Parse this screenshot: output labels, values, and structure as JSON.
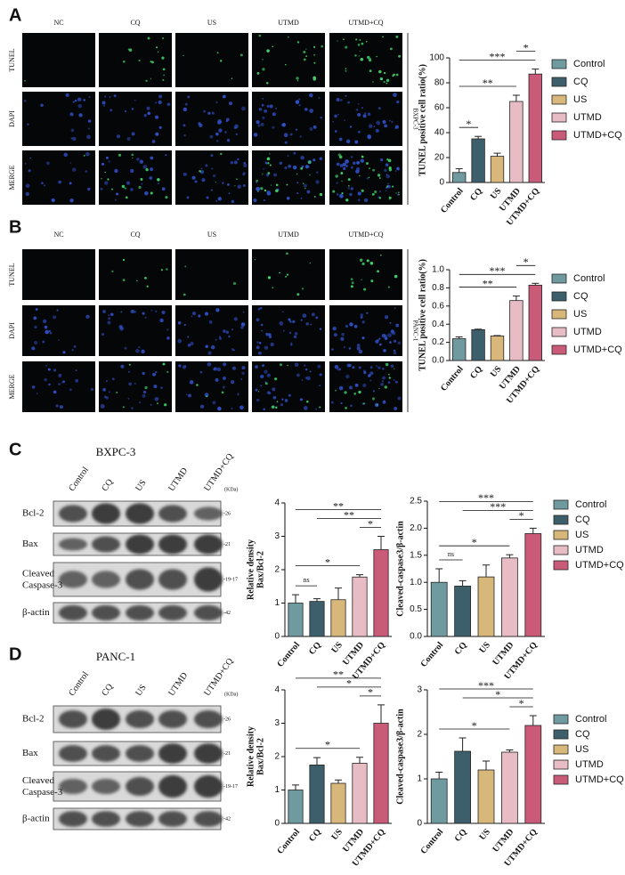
{
  "panel_a": {
    "letter": "A",
    "columns": [
      "NC",
      "CQ",
      "US",
      "UTMD",
      "UTMD+CQ"
    ],
    "rows": [
      "TUNEL",
      "DAPI",
      "MERGE"
    ],
    "cell_line": "BXPC-3"
  },
  "panel_b": {
    "letter": "B",
    "columns": [
      "NC",
      "CQ",
      "US",
      "UTMD",
      "UTMD+CQ"
    ],
    "rows": [
      "TUNEL",
      "DAPI",
      "MERGE"
    ],
    "cell_line": "PANC-1"
  },
  "panel_c": {
    "letter": "C",
    "cell_line": "BXPC-3",
    "lanes": [
      "Control",
      "CQ",
      "US",
      "UTMD",
      "UTMD+CQ"
    ],
    "unit": "(KDa)",
    "proteins": [
      "Bcl-2",
      "Bax",
      [
        "Cleaved",
        "Caspase-3"
      ],
      "β-actin"
    ],
    "sizes": [
      "-26",
      "-21",
      "-19-17",
      "-42"
    ]
  },
  "panel_d": {
    "letter": "D",
    "cell_line": "PANC-1",
    "lanes": [
      "Control",
      "CQ",
      "US",
      "UTMD",
      "UTMD+CQ"
    ],
    "unit": "(KDa)",
    "proteins": [
      "Bcl-2",
      "Bax",
      [
        "Cleaved",
        "Caspase-3"
      ],
      "β-actin"
    ],
    "sizes": [
      "-26",
      "-21",
      "-19-17",
      "-42"
    ]
  },
  "chart_data": [
    {
      "type": "bar",
      "ylabel": "TUNEL positive cell ratio(%)",
      "categories": [
        "Control",
        "CQ",
        "US",
        "UTMD",
        "UTMD+CQ"
      ],
      "values": [
        8,
        35,
        21,
        65,
        87
      ],
      "errors": [
        3,
        2,
        2.5,
        5,
        4
      ],
      "colors": [
        "#6f9aa0",
        "#3d5f6c",
        "#d8b87a",
        "#e8bcc4",
        "#c95a78"
      ],
      "ylim": [
        0,
        100
      ],
      "yticks": [
        0,
        20,
        40,
        60,
        80,
        100
      ],
      "legend": true,
      "significance": [
        {
          "from": 0,
          "to": 1,
          "label": "*"
        },
        {
          "from": 0,
          "to": 3,
          "label": "**"
        },
        {
          "from": 0,
          "to": 4,
          "label": "***"
        },
        {
          "from": 3,
          "to": 4,
          "label": "*"
        }
      ]
    },
    {
      "type": "bar",
      "ylabel": "TUNEL positive cell ratio(%)",
      "categories": [
        "Control",
        "CQ",
        "US",
        "UTMD",
        "UTMD+CQ"
      ],
      "values": [
        0.24,
        0.34,
        0.27,
        0.66,
        0.83
      ],
      "errors": [
        0.02,
        0.005,
        0.005,
        0.05,
        0.02
      ],
      "colors": [
        "#6f9aa0",
        "#3d5f6c",
        "#d8b87a",
        "#e8bcc4",
        "#c95a78"
      ],
      "ylim": [
        0,
        1
      ],
      "yticks": [
        {
          "value": 0,
          "label": "0.0"
        },
        0.2,
        0.4,
        0.6,
        0.8,
        {
          "value": 1,
          "label": "1.0"
        }
      ],
      "legend": true,
      "significance": [
        {
          "from": 0,
          "to": 3,
          "label": "**"
        },
        {
          "from": 0,
          "to": 4,
          "label": "***"
        },
        {
          "from": 3,
          "to": 4,
          "label": "*"
        }
      ]
    },
    {
      "type": "bar",
      "ylabel": [
        "Relative density",
        "Bax/Bcl-2"
      ],
      "categories": [
        "Control",
        "CQ",
        "US",
        "UTMD",
        "UTMD+CQ"
      ],
      "values": [
        1.0,
        1.05,
        1.1,
        1.78,
        2.6
      ],
      "errors": [
        0.25,
        0.08,
        0.35,
        0.07,
        0.4
      ],
      "colors": [
        "#6f9aa0",
        "#3d5f6c",
        "#d8b87a",
        "#e8bcc4",
        "#c95a78"
      ],
      "ylim": [
        0,
        4
      ],
      "yticks": [
        0,
        1,
        2,
        3,
        4
      ],
      "legend": false,
      "significance": [
        {
          "from": 0,
          "to": 1,
          "label": "ns"
        },
        {
          "from": 0,
          "to": 3,
          "label": "*"
        },
        {
          "from": 3,
          "to": 4,
          "label": "*"
        },
        {
          "from": 1,
          "to": 4,
          "label": "**"
        },
        {
          "from": 0,
          "to": 4,
          "label": "**"
        }
      ]
    },
    {
      "type": "bar",
      "ylabel": "Cleaved-caspase3/β-actin",
      "categories": [
        "Control",
        "CQ",
        "US",
        "UTMD",
        "UTMD+CQ"
      ],
      "values": [
        1.0,
        0.93,
        1.1,
        1.45,
        1.9
      ],
      "errors": [
        0.25,
        0.1,
        0.22,
        0.06,
        0.1
      ],
      "colors": [
        "#6f9aa0",
        "#3d5f6c",
        "#d8b87a",
        "#e8bcc4",
        "#c95a78"
      ],
      "ylim": [
        0,
        2.5
      ],
      "yticks": [
        {
          "value": 0,
          "label": "0.0"
        },
        0.5,
        {
          "value": 1,
          "label": "1.0"
        },
        1.5,
        {
          "value": 2,
          "label": "2.0"
        },
        2.5
      ],
      "legend": true,
      "significance": [
        {
          "from": 0,
          "to": 1,
          "label": "ns"
        },
        {
          "from": 0,
          "to": 3,
          "label": "*"
        },
        {
          "from": 3,
          "to": 4,
          "label": "*"
        },
        {
          "from": 1,
          "to": 4,
          "label": "***"
        },
        {
          "from": 0,
          "to": 4,
          "label": "***"
        }
      ]
    },
    {
      "type": "bar",
      "ylabel": [
        "Relative density",
        "Bax/Bcl-2"
      ],
      "categories": [
        "Control",
        "CQ",
        "US",
        "UTMD",
        "UTMD+CQ"
      ],
      "values": [
        1.0,
        1.75,
        1.2,
        1.8,
        3.0
      ],
      "errors": [
        0.15,
        0.22,
        0.1,
        0.18,
        0.55
      ],
      "colors": [
        "#6f9aa0",
        "#3d5f6c",
        "#d8b87a",
        "#e8bcc4",
        "#c95a78"
      ],
      "ylim": [
        0,
        4
      ],
      "yticks": [
        0,
        1,
        2,
        3,
        4
      ],
      "legend": false,
      "significance": [
        {
          "from": 0,
          "to": 3,
          "label": "*"
        },
        {
          "from": 3,
          "to": 4,
          "label": "*"
        },
        {
          "from": 1,
          "to": 4,
          "label": "*"
        },
        {
          "from": 0,
          "to": 4,
          "label": "**"
        }
      ]
    },
    {
      "type": "bar",
      "ylabel": "Cleaved-caspase3/β-actin",
      "categories": [
        "Control",
        "CQ",
        "US",
        "UTMD",
        "UTMD+CQ"
      ],
      "values": [
        1.0,
        1.62,
        1.2,
        1.6,
        2.2
      ],
      "errors": [
        0.15,
        0.3,
        0.2,
        0.05,
        0.22
      ],
      "colors": [
        "#6f9aa0",
        "#3d5f6c",
        "#d8b87a",
        "#e8bcc4",
        "#c95a78"
      ],
      "ylim": [
        0,
        3
      ],
      "yticks": [
        0,
        1,
        2,
        3
      ],
      "legend": true,
      "significance": [
        {
          "from": 0,
          "to": 3,
          "label": "*"
        },
        {
          "from": 3,
          "to": 4,
          "label": "*"
        },
        {
          "from": 1,
          "to": 4,
          "label": "*"
        },
        {
          "from": 0,
          "to": 4,
          "label": "***"
        }
      ]
    }
  ]
}
